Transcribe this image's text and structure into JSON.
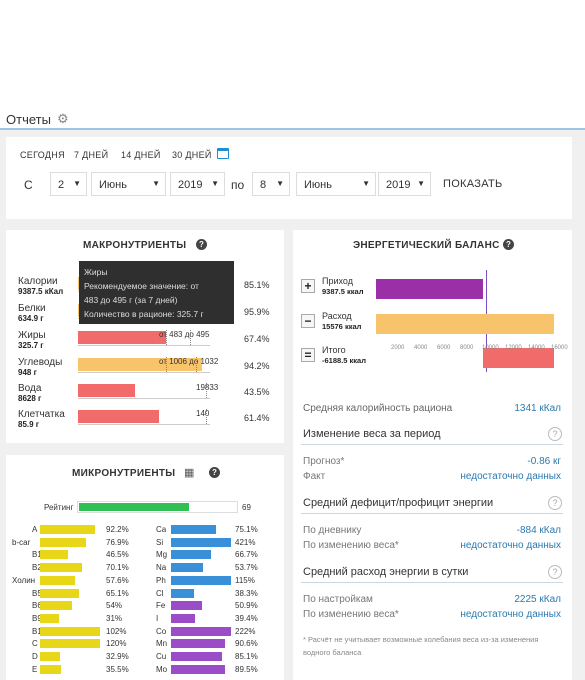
{
  "header": {
    "title": "Отчеты",
    "gear_icon": "gear-icon"
  },
  "period": {
    "tabs": [
      "СЕГОДНЯ",
      "7 ДНЕЙ",
      "14 ДНЕЙ",
      "30 ДНЕЙ"
    ],
    "calendar_icon": "calendar-icon",
    "from_label": "С",
    "from_day": "2",
    "from_month": "Июнь",
    "from_year": "2019",
    "to_label": "по",
    "to_day": "8",
    "to_month": "Июнь",
    "to_year": "2019",
    "show_label": "ПОКАЗАТЬ"
  },
  "macro": {
    "title": "МАКРОНУТРИЕНТЫ",
    "help_icon": "question-icon",
    "rows": [
      {
        "name": "Калории",
        "value": "9387.5 кКал",
        "pct": "85.1%",
        "fill": 0.85,
        "color": "#f7c46c",
        "range": ""
      },
      {
        "name": "Белки",
        "value": "634.9 г",
        "pct": "95.9%",
        "fill": 0.96,
        "color": "#f7c46c",
        "range": ""
      },
      {
        "name": "Жиры",
        "value": "325.7 г",
        "pct": "67.4%",
        "fill": 0.67,
        "color": "#f26b6b",
        "range": "от 483   до 495"
      },
      {
        "name": "Углеводы",
        "value": "948 г",
        "pct": "94.2%",
        "fill": 0.94,
        "color": "#f7c46c",
        "range": "от 1006 до 1032"
      },
      {
        "name": "Вода",
        "value": "8628 г",
        "pct": "43.5%",
        "fill": 0.435,
        "color": "#f26b6b",
        "range": "19833"
      },
      {
        "name": "Клетчатка",
        "value": "85.9 г",
        "pct": "61.4%",
        "fill": 0.614,
        "color": "#f26b6b",
        "range": "140"
      }
    ],
    "tooltip": {
      "title": "Жиры",
      "line1": "Рекомендуемое значение: от",
      "line2": "483 до 495 г (за 7 дней)",
      "line3": "Количество в рационе: 325.7 г"
    }
  },
  "micro": {
    "title": "МИКРОНУТРИЕНТЫ",
    "table_icon": "table-icon",
    "help_icon": "question-icon",
    "rating_label": "Рейтинг",
    "rating_value": "69",
    "rating_fill": 0.69,
    "vitamins": [
      {
        "name": "A",
        "pct": "92.2%",
        "fill": 0.92
      },
      {
        "name": "b-car",
        "pct": "76.9%",
        "fill": 0.77
      },
      {
        "name": "B1",
        "pct": "46.5%",
        "fill": 0.465
      },
      {
        "name": "B2",
        "pct": "70.1%",
        "fill": 0.7
      },
      {
        "name": "Холин",
        "pct": "57.6%",
        "fill": 0.576
      },
      {
        "name": "B5",
        "pct": "65.1%",
        "fill": 0.651
      },
      {
        "name": "B6",
        "pct": "54%",
        "fill": 0.54
      },
      {
        "name": "B9",
        "pct": "31%",
        "fill": 0.31
      },
      {
        "name": "B12",
        "pct": "102%",
        "fill": 1.0
      },
      {
        "name": "C",
        "pct": "120%",
        "fill": 1.0
      },
      {
        "name": "D",
        "pct": "32.9%",
        "fill": 0.329
      },
      {
        "name": "E",
        "pct": "35.5%",
        "fill": 0.355
      }
    ],
    "minerals": [
      {
        "name": "Ca",
        "pct": "75.1%",
        "fill": 0.751,
        "color": "#3a8fd9"
      },
      {
        "name": "Si",
        "pct": "421%",
        "fill": 1.0,
        "color": "#3a8fd9"
      },
      {
        "name": "Mg",
        "pct": "66.7%",
        "fill": 0.667,
        "color": "#3a8fd9"
      },
      {
        "name": "Na",
        "pct": "53.7%",
        "fill": 0.537,
        "color": "#3a8fd9"
      },
      {
        "name": "Ph",
        "pct": "115%",
        "fill": 1.0,
        "color": "#3a8fd9"
      },
      {
        "name": "Cl",
        "pct": "38.3%",
        "fill": 0.383,
        "color": "#3a8fd9"
      },
      {
        "name": "Fe",
        "pct": "50.9%",
        "fill": 0.509,
        "color": "#9b4dc7"
      },
      {
        "name": "I",
        "pct": "39.4%",
        "fill": 0.394,
        "color": "#9b4dc7"
      },
      {
        "name": "Co",
        "pct": "222%",
        "fill": 1.0,
        "color": "#9b4dc7"
      },
      {
        "name": "Mn",
        "pct": "90.6%",
        "fill": 0.906,
        "color": "#9b4dc7"
      },
      {
        "name": "Cu",
        "pct": "85.1%",
        "fill": 0.851,
        "color": "#9b4dc7"
      },
      {
        "name": "Mo",
        "pct": "89.5%",
        "fill": 0.895,
        "color": "#9b4dc7"
      }
    ]
  },
  "energy": {
    "title": "ЭНЕРГЕТИЧЕСКИЙ БАЛАНС",
    "help_icon": "question-icon",
    "rows": [
      {
        "sign": "+",
        "name": "Приход",
        "value": "9387.5 ккал",
        "amount": 9387.5,
        "color": "#9b2fa8"
      },
      {
        "sign": "−",
        "name": "Расход",
        "value": "15576 ккал",
        "amount": 15576,
        "color": "#f7c46c"
      },
      {
        "sign": "=",
        "name": "Итого",
        "value": "-6188.5 ккал",
        "amount": -6188.5,
        "color": "#f26b6b"
      }
    ],
    "axis_ticks": [
      "2000",
      "4000",
      "6000",
      "8000",
      "10000",
      "12000",
      "14000",
      "16000"
    ]
  },
  "stats": {
    "avg_label": "Средняя калорийность рациона",
    "avg_value": "1341 кКал",
    "weight_head": "Изменение веса за период",
    "forecast_label": "Прогноз*",
    "forecast_value": "-0.86 кг",
    "fact_label": "Факт",
    "fact_value": "недостаточно данных",
    "deficit_head": "Средний дефицит/профицит энергии",
    "diary_label": "По дневнику",
    "diary_value": "-884 кКал",
    "by_weight_label": "По изменению веса*",
    "by_weight_value": "недостаточно данных",
    "expense_head": "Средний расход энергии в сутки",
    "settings_label": "По настройкам",
    "settings_value": "2225 кКал",
    "by_weight2_label": "По изменению веса*",
    "by_weight2_value": "недостаточно данных",
    "note": "* Расчёт не учитывает возможные колебания веса из-за изменения водного баланса"
  }
}
